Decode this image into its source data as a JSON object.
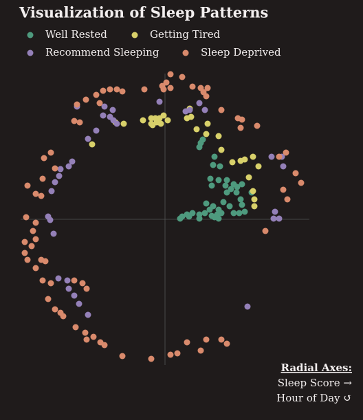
{
  "chart_data": {
    "type": "scatter",
    "title": "Visualization of Sleep Patterns",
    "annotation_title": "Radial Axes:",
    "annotation_lines": [
      "Sleep Score →",
      "Hour of Day ↺"
    ],
    "xlim": [
      -210,
      210
    ],
    "ylim": [
      -212,
      212
    ],
    "xticks": [],
    "yticks": [],
    "legend": "top-left",
    "series": [
      {
        "name": "Well Rested",
        "color": "#4e9a7e",
        "x": [
          52,
          55,
          50,
          72,
          70,
          80,
          66,
          78,
          90,
          68,
          88,
          100,
          96,
          105,
          112,
          126,
          90,
          104,
          110,
          85,
          94,
          112,
          60,
          70,
          78,
          82,
          65,
          58,
          50,
          40,
          32,
          25,
          22,
          35,
          50,
          72,
          76,
          100,
          108,
          116,
          68,
          78
        ],
        "y": [
          111,
          116,
          105,
          91,
          79,
          77,
          59,
          57,
          57,
          49,
          49,
          51,
          44,
          47,
          51,
          39,
          39,
          39,
          29,
          25,
          19,
          21,
          23,
          19,
          14,
          9,
          14,
          9,
          7,
          9,
          7,
          4,
          1,
          4,
          1,
          3,
          7,
          9,
          9,
          11,
          5,
          1
        ]
      },
      {
        "name": "Getting Tired",
        "color": "#d8d06a",
        "x": [
          -20,
          -14,
          -8,
          -2,
          -32,
          -20,
          -12,
          -6,
          4,
          32,
          38,
          36,
          46,
          62,
          60,
          78,
          82,
          98,
          110,
          116,
          128,
          136,
          122,
          128,
          130,
          130,
          -106,
          -60,
          -72,
          -18
        ],
        "y": [
          147,
          147,
          147,
          151,
          144,
          139,
          141,
          139,
          144,
          147,
          149,
          161,
          131,
          139,
          124,
          121,
          101,
          83,
          85,
          87,
          91,
          77,
          61,
          41,
          29,
          19,
          109,
          139,
          141,
          137
        ]
      },
      {
        "name": "Recommend Sleeping",
        "color": "#9480b8",
        "x": [
          -128,
          -88,
          -76,
          -90,
          -80,
          -75,
          -70,
          -100,
          -112,
          -135,
          -140,
          -152,
          -154,
          -160,
          -165,
          -170,
          -167,
          -162,
          -155,
          -142,
          -140,
          -132,
          -125,
          -112,
          120,
          155,
          160,
          166,
          158,
          -8,
          30,
          36,
          50,
          58,
          172,
          170
        ],
        "y": [
          164,
          164,
          159,
          151,
          149,
          144,
          139,
          129,
          117,
          84,
          77,
          73,
          63,
          54,
          41,
          4,
          -1,
          -21,
          -86,
          -89,
          -101,
          -111,
          -123,
          -139,
          -127,
          91,
          11,
          1,
          1,
          171,
          157,
          159,
          169,
          159,
          77,
          91
        ]
      },
      {
        "name": "Sleep Deprived",
        "color": "#d98a6c",
        "x": [
          8,
          25,
          2,
          -4,
          8,
          -2,
          -30,
          -62,
          -70,
          -80,
          -90,
          -100,
          -115,
          -128,
          -132,
          -124,
          -95,
          40,
          52,
          62,
          56,
          60,
          82,
          106,
          112,
          110,
          134,
          166,
          176,
          190,
          198,
          178,
          172,
          146,
          60,
          82,
          90,
          52,
          32,
          18,
          8,
          -20,
          -62,
          -88,
          -94,
          -104,
          -114,
          -116,
          -130,
          -148,
          -152,
          -160,
          -170,
          -166,
          -178,
          -188,
          -180,
          -200,
          -204,
          -204,
          -194,
          -202,
          -188,
          -192,
          -188,
          -174,
          -200,
          -188,
          -180,
          -178,
          -176,
          -166,
          -160,
          -120,
          -114,
          -132
        ],
        "y": [
          211,
          207,
          199,
          194,
          191,
          189,
          189,
          186,
          189,
          189,
          187,
          181,
          174,
          167,
          143,
          141,
          169,
          193,
          191,
          191,
          185,
          179,
          159,
          147,
          145,
          133,
          136,
          91,
          97,
          67,
          53,
          29,
          43,
          -17,
          -175,
          -175,
          -181,
          -191,
          -179,
          -195,
          -197,
          -203,
          -199,
          -183,
          -179,
          -171,
          -175,
          -165,
          -157,
          -141,
          -136,
          -131,
          -116,
          -93,
          -89,
          -71,
          -59,
          -59,
          -49,
          -33,
          -39,
          3,
          -5,
          -17,
          -29,
          -61,
          49,
          37,
          34,
          59,
          89,
          97,
          74,
          -93,
          -101,
          -89
        ]
      }
    ]
  }
}
